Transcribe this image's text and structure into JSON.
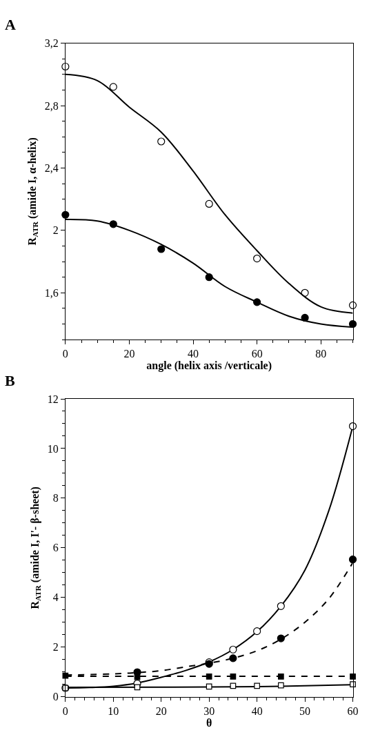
{
  "chart_data": [
    {
      "type": "scatter",
      "title": "A",
      "xlabel": "angle (helix axis /verticale)",
      "ylabel": "R$_{ATR}$ (amide I, α-helix)",
      "xlim": [
        0,
        90
      ],
      "xticks": [
        0,
        20,
        40,
        60,
        80
      ],
      "ylim": [
        1.3,
        3.2
      ],
      "yticks": [
        {
          "value": 1.6,
          "label": "1,6"
        },
        {
          "value": 2,
          "label": "2"
        },
        {
          "value": 2.4,
          "label": "2,4"
        },
        {
          "value": 2.8,
          "label": "2,8"
        },
        {
          "value": 3.2,
          "label": "3,2"
        }
      ],
      "series": [
        {
          "marker": "circle",
          "color": "#ffffff",
          "x": [
            0,
            15,
            30,
            45,
            60,
            75,
            90
          ],
          "values": [
            3.05,
            2.92,
            2.57,
            2.17,
            1.82,
            1.6,
            1.52
          ]
        },
        {
          "marker": "circle",
          "color": "#000000",
          "x": [
            0,
            15,
            30,
            45,
            60,
            75,
            90
          ],
          "values": [
            2.1,
            2.04,
            1.88,
            1.7,
            1.54,
            1.44,
            1.4
          ]
        },
        {
          "type": "line",
          "marker": "none",
          "line_style": "solid",
          "color": "#000000",
          "x": [
            0,
            10,
            20,
            30,
            40,
            50,
            60,
            70,
            80,
            90
          ],
          "values": [
            3.0,
            2.96,
            2.79,
            2.63,
            2.38,
            2.1,
            1.87,
            1.66,
            1.51,
            1.47
          ]
        },
        {
          "type": "line",
          "marker": "none",
          "line_style": "solid",
          "color": "#000000",
          "x": [
            0,
            10,
            20,
            30,
            40,
            50,
            60,
            70,
            80,
            90
          ],
          "values": [
            2.07,
            2.06,
            2.0,
            1.91,
            1.79,
            1.64,
            1.54,
            1.45,
            1.4,
            1.38
          ]
        }
      ]
    },
    {
      "type": "scatter",
      "title": "B",
      "xlabel": "θ",
      "ylabel": "R$_{ATR}$ (amide I, I'- β-sheet)",
      "xlim": [
        0,
        60
      ],
      "xticks": [
        0,
        10,
        20,
        30,
        40,
        50,
        60
      ],
      "ylim": [
        0,
        12
      ],
      "yticks": [
        0,
        2,
        4,
        6,
        8,
        10,
        12
      ],
      "series": [
        {
          "type": "line",
          "marker": "none",
          "line_style": "solid",
          "color": "#000000",
          "x": [
            0,
            5,
            10,
            15,
            20,
            25,
            30,
            35,
            40,
            45,
            50,
            55,
            60
          ],
          "values": [
            0.35,
            0.37,
            0.42,
            0.55,
            0.78,
            1.05,
            1.4,
            1.9,
            2.62,
            3.65,
            5.1,
            7.5,
            10.9
          ]
        },
        {
          "type": "line",
          "marker": "none",
          "line_style": "dashed",
          "color": "#000000",
          "x": [
            0,
            10,
            15,
            20,
            25,
            30,
            35,
            40,
            45,
            50,
            55,
            60
          ],
          "values": [
            0.87,
            0.92,
            0.97,
            1.05,
            1.2,
            1.35,
            1.55,
            1.85,
            2.32,
            3.0,
            3.95,
            5.4
          ]
        },
        {
          "type": "line",
          "marker": "none",
          "line_style": "dashed",
          "color": "#000000",
          "x": [
            0,
            60
          ],
          "values": [
            0.82,
            0.82
          ]
        },
        {
          "type": "line",
          "marker": "none",
          "line_style": "solid",
          "color": "#000000",
          "x": [
            0,
            30,
            45,
            60
          ],
          "values": [
            0.38,
            0.39,
            0.42,
            0.48
          ]
        },
        {
          "marker": "square",
          "color": "#000000",
          "x": [
            0,
            15,
            30,
            35,
            45,
            60
          ],
          "values": [
            0.85,
            0.79,
            0.81,
            0.81,
            0.81,
            0.81
          ]
        },
        {
          "marker": "circle",
          "color": "#ffffff",
          "x": [
            0,
            15,
            30,
            35,
            40,
            45,
            60
          ],
          "values": [
            0.35,
            0.53,
            1.39,
            1.9,
            2.64,
            3.65,
            10.9
          ]
        },
        {
          "marker": "circle",
          "color": "#000000",
          "x": [
            15,
            30,
            35,
            45,
            60
          ],
          "values": [
            0.99,
            1.32,
            1.55,
            2.35,
            5.53
          ]
        },
        {
          "marker": "square",
          "color": "#ffffff",
          "x": [
            0,
            15,
            30,
            35,
            40,
            45,
            60
          ],
          "values": [
            0.35,
            0.38,
            0.41,
            0.44,
            0.44,
            0.46,
            0.5
          ]
        }
      ]
    }
  ]
}
